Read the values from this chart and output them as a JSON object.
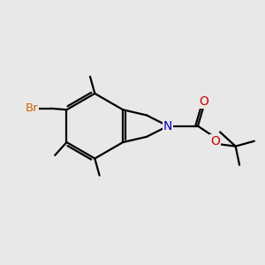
{
  "background_color": "#e8e8e8",
  "bond_color": "#000000",
  "bond_width": 1.6,
  "atom_colors": {
    "N": "#0000cc",
    "O": "#cc0000",
    "Br": "#cc6600",
    "C": "#000000"
  },
  "font_size": 9.5,
  "figsize": [
    3.0,
    3.0
  ],
  "dpi": 100
}
